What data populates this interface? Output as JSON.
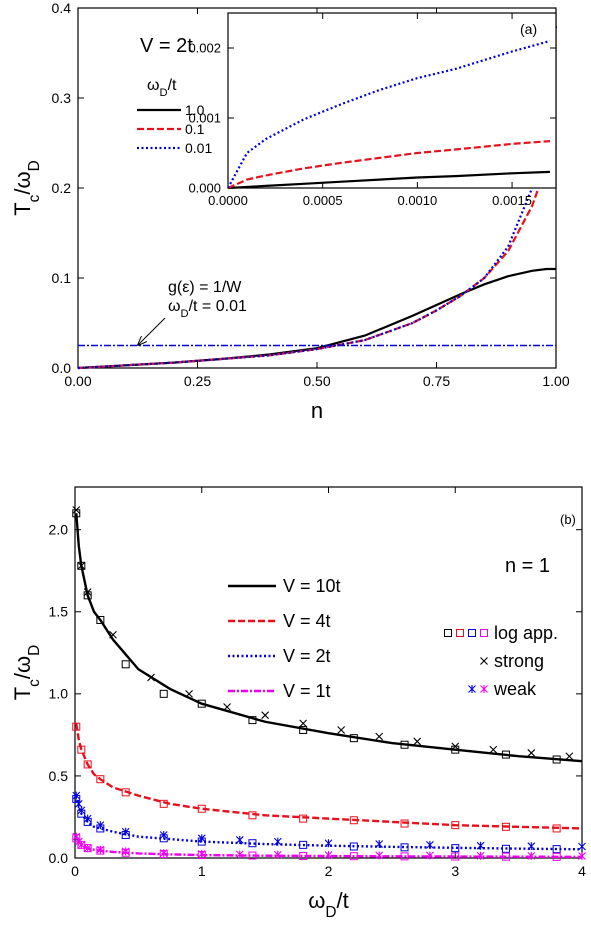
{
  "chart_data": [
    {
      "type": "line",
      "label": "(a)",
      "text": "V = 2t",
      "x_label": "n",
      "y_label": [
        "T",
        "c",
        "/ω",
        "D"
      ],
      "legend_title": [
        "ω",
        "D",
        "/t"
      ],
      "xlim": [
        0,
        1
      ],
      "ylim": [
        0,
        0.4
      ],
      "xticks": [
        {
          "value": 0,
          "label": "0.00"
        },
        0.25,
        {
          "value": 0.5,
          "label": "0.50"
        },
        0.75,
        {
          "value": 1,
          "label": "1.00"
        }
      ],
      "yticks": [
        {
          "value": 0,
          "label": "0.0"
        },
        0.1,
        0.2,
        0.3,
        0.4
      ],
      "x": [
        0,
        0.1,
        0.2,
        0.3,
        0.4,
        0.5,
        0.6,
        0.7,
        0.75,
        0.8,
        0.85,
        0.9,
        0.95,
        0.98,
        1.0
      ],
      "series": [
        {
          "name": "1.0",
          "color": "#000000",
          "dash": "solid",
          "values": [
            0,
            0.003,
            0.006,
            0.01,
            0.015,
            0.022,
            0.036,
            0.058,
            0.07,
            0.082,
            0.093,
            0.102,
            0.108,
            0.11,
            0.11
          ]
        },
        {
          "name": "0.1",
          "color": "#e8101c",
          "dash": "dashed",
          "values": [
            0,
            0.003,
            0.006,
            0.01,
            0.014,
            0.021,
            0.031,
            0.05,
            0.064,
            0.08,
            0.1,
            0.13,
            0.18,
            0.225,
            0.245
          ]
        },
        {
          "name": "0.01",
          "color": "#0000dd",
          "dash": "dotted",
          "values": [
            0,
            0.003,
            0.006,
            0.01,
            0.014,
            0.021,
            0.031,
            0.05,
            0.064,
            0.08,
            0.1,
            0.135,
            0.2,
            0.28,
            0.38
          ]
        }
      ],
      "reference_line": {
        "value": 0.025,
        "color": "#0000dd",
        "dash": "dashdot",
        "annotation": [
          [
            "g(ε) = 1/W"
          ],
          [
            "ω",
            "D",
            "/t = 0.01"
          ]
        ]
      },
      "inset": {
        "type": "line",
        "xlim": [
          0,
          0.001732
        ],
        "ylim": [
          0,
          0.0025
        ],
        "xticks": [
          {
            "value": 0,
            "label": "0.0000"
          },
          {
            "value": 0.0005,
            "label": "0.0005"
          },
          {
            "value": 0.001,
            "label": "0.0010"
          },
          {
            "value": 0.0015,
            "label": "0.0015"
          }
        ],
        "yticks": [
          {
            "value": 0,
            "label": "0.000"
          },
          0.001,
          0.002
        ],
        "x": [
          0,
          0.0001,
          0.0002,
          0.0004,
          0.0006,
          0.0008,
          0.001,
          0.0012,
          0.0015,
          0.0017
        ],
        "series": [
          {
            "color": "#000000",
            "dash": "solid",
            "values": [
              0,
              1.5e-05,
              3e-05,
              6e-05,
              9e-05,
              0.00012,
              0.00015,
              0.00017,
              0.00021,
              0.00023
            ]
          },
          {
            "color": "#e8101c",
            "dash": "dashed",
            "values": [
              0,
              0.00012,
              0.00018,
              0.00028,
              0.00036,
              0.00043,
              0.0005,
              0.00055,
              0.00063,
              0.00067
            ]
          },
          {
            "color": "#0000dd",
            "dash": "dotted",
            "values": [
              0,
              0.0005,
              0.0007,
              0.00098,
              0.0012,
              0.0014,
              0.00157,
              0.0017,
              0.00195,
              0.0021
            ]
          }
        ]
      }
    },
    {
      "type": "line",
      "label": "(b)",
      "text": "n = 1",
      "x_label": [
        "ω",
        "D",
        "/t"
      ],
      "y_label": [
        "T",
        "c",
        "/ω",
        "D"
      ],
      "xlim": [
        0,
        4
      ],
      "ylim": [
        0,
        2.26
      ],
      "xticks": [
        0,
        1,
        2,
        3,
        4
      ],
      "yticks": [
        {
          "value": 0,
          "label": "0.0"
        },
        0.5,
        {
          "value": 1,
          "label": "1.0"
        },
        1.5,
        {
          "value": 2,
          "label": "2.0"
        }
      ],
      "x": [
        0.01,
        0.03,
        0.05,
        0.1,
        0.15,
        0.2,
        0.3,
        0.5,
        0.75,
        1,
        1.5,
        2,
        2.5,
        3,
        3.5,
        4
      ],
      "series": [
        {
          "name": "V = 10t",
          "color": "#000000",
          "dash": "solid",
          "values": [
            2.1,
            1.9,
            1.78,
            1.6,
            1.5,
            1.45,
            1.33,
            1.15,
            1.03,
            0.94,
            0.83,
            0.76,
            0.7,
            0.66,
            0.62,
            0.59
          ]
        },
        {
          "name": "V =  4t",
          "color": "#e8101c",
          "dash": "dashed",
          "values": [
            0.82,
            0.72,
            0.66,
            0.57,
            0.51,
            0.48,
            0.43,
            0.38,
            0.33,
            0.3,
            0.26,
            0.24,
            0.22,
            0.2,
            0.19,
            0.18
          ]
        },
        {
          "name": "V =  2t",
          "color": "#0000dd",
          "dash": "dotted",
          "values": [
            0.38,
            0.31,
            0.27,
            0.22,
            0.19,
            0.18,
            0.16,
            0.13,
            0.115,
            0.1,
            0.085,
            0.075,
            0.068,
            0.062,
            0.057,
            0.053
          ]
        },
        {
          "name": "V =  1t",
          "color": "#ee00ee",
          "dash": "dashdot",
          "values": [
            0.13,
            0.1,
            0.08,
            0.06,
            0.05,
            0.045,
            0.037,
            0.028,
            0.022,
            0.018,
            0.014,
            0.012,
            0.01,
            0.009,
            0.008,
            0.007
          ]
        }
      ],
      "marker_sets": [
        {
          "name": "log app.",
          "symbol": "square",
          "x": [
            0.01,
            0.05,
            0.1,
            0.2,
            0.4,
            0.7,
            1.0,
            1.4,
            1.8,
            2.2,
            2.6,
            3.0,
            3.4,
            3.8
          ],
          "series": [
            {
              "color": "#000000",
              "values": [
                2.1,
                1.78,
                1.6,
                1.45,
                1.18,
                1.0,
                0.94,
                0.84,
                0.78,
                0.73,
                0.69,
                0.66,
                0.63,
                0.6
              ]
            },
            {
              "color": "#e8101c",
              "values": [
                0.8,
                0.66,
                0.57,
                0.48,
                0.4,
                0.33,
                0.3,
                0.26,
                0.24,
                0.23,
                0.21,
                0.2,
                0.19,
                0.18
              ]
            },
            {
              "color": "#0000dd",
              "values": [
                0.36,
                0.27,
                0.22,
                0.18,
                0.14,
                0.12,
                0.1,
                0.09,
                0.08,
                0.07,
                0.065,
                0.06,
                0.056,
                0.054
              ]
            },
            {
              "color": "#ee00ee",
              "values": [
                0.12,
                0.08,
                0.06,
                0.045,
                0.032,
                0.024,
                0.018,
                0.015,
                0.012,
                0.011,
                0.01,
                0.009,
                0.008,
                0.007
              ]
            }
          ]
        },
        {
          "name": "strong",
          "symbol": "cross",
          "x": [
            0.01,
            0.05,
            0.1,
            0.3,
            0.6,
            0.9,
            1.2,
            1.5,
            1.8,
            2.1,
            2.4,
            2.7,
            3.0,
            3.3,
            3.6,
            3.9
          ],
          "series": [
            {
              "color": "#000000",
              "values": [
                2.12,
                1.78,
                1.62,
                1.36,
                1.1,
                1.0,
                0.92,
                0.87,
                0.82,
                0.78,
                0.74,
                0.71,
                0.68,
                0.66,
                0.64,
                0.62
              ]
            }
          ]
        },
        {
          "name": "weak",
          "symbol": "star",
          "x": [
            0.01,
            0.03,
            0.05,
            0.1,
            0.2,
            0.4,
            0.7,
            1.0,
            1.3,
            1.6,
            2.0,
            2.4,
            2.8,
            3.2,
            3.6,
            4.0
          ],
          "series": [
            {
              "color": "#0000dd",
              "values": [
                0.38,
                0.33,
                0.29,
                0.24,
                0.2,
                0.16,
                0.14,
                0.12,
                0.11,
                0.1,
                0.09,
                0.085,
                0.08,
                0.075,
                0.072,
                0.07
              ]
            },
            {
              "color": "#ee00ee",
              "values": [
                0.13,
                0.1,
                0.08,
                0.06,
                0.05,
                0.04,
                0.03,
                0.025,
                0.022,
                0.02,
                0.018,
                0.016,
                0.015,
                0.014,
                0.013,
                0.012
              ]
            }
          ]
        }
      ]
    }
  ]
}
